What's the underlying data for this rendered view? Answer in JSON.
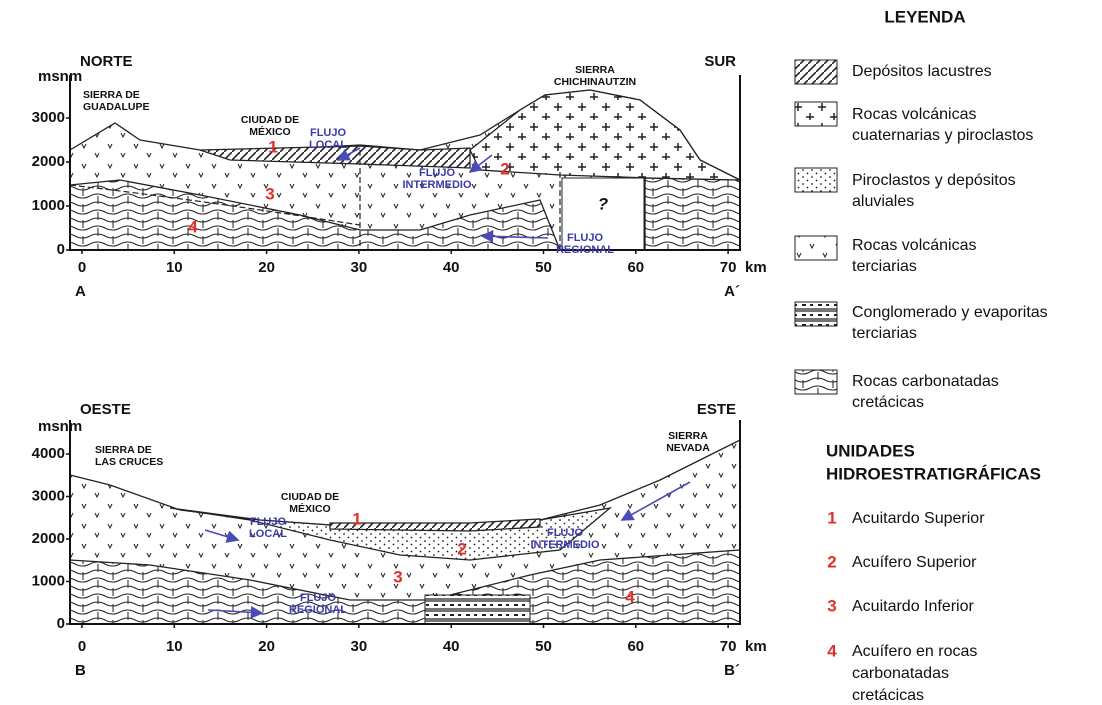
{
  "sections": [
    {
      "left_label": "NORTE",
      "right_label": "SUR",
      "y_unit": "msnm",
      "yticks": [
        0,
        1000,
        2000,
        3000
      ],
      "xticks": [
        0,
        10,
        20,
        30,
        40,
        50,
        60,
        70
      ],
      "x_unit": "km",
      "start": "A",
      "end": "A´",
      "places": [
        {
          "lines": [
            "SIERRA DE",
            "GUADALUPE"
          ]
        },
        {
          "lines": [
            "CIUDAD DE",
            "MÉXICO"
          ]
        },
        {
          "lines": [
            "SIERRA",
            "CHICHINAUTZIN"
          ]
        }
      ],
      "flows": [
        {
          "lines": [
            "FLUJO",
            "LOCAL"
          ]
        },
        {
          "lines": [
            "FLUJO",
            "INTERMEDIO"
          ]
        },
        {
          "lines": [
            "FLUJO",
            "REGIONAL"
          ]
        }
      ],
      "unit_numbers": [
        "1",
        "2",
        "3",
        "4"
      ],
      "unknown": "?"
    },
    {
      "left_label": "OESTE",
      "right_label": "ESTE",
      "y_unit": "msnm",
      "yticks": [
        0,
        1000,
        2000,
        3000,
        4000
      ],
      "xticks": [
        0,
        10,
        20,
        30,
        40,
        50,
        60,
        70
      ],
      "x_unit": "km",
      "start": "B",
      "end": "B´",
      "places": [
        {
          "lines": [
            "SIERRA DE",
            "LAS CRUCES"
          ]
        },
        {
          "lines": [
            "CIUDAD DE",
            "MÉXICO"
          ]
        },
        {
          "lines": [
            "SIERRA",
            "NEVADA"
          ]
        }
      ],
      "flows": [
        {
          "lines": [
            "FLUJO",
            "LOCAL"
          ]
        },
        {
          "lines": [
            "FLUJO",
            "INTERMEDIO"
          ]
        },
        {
          "lines": [
            "FLUJO",
            "REGIONAL"
          ]
        }
      ],
      "unit_numbers": [
        "1",
        "2",
        "3",
        "4"
      ]
    }
  ],
  "legend": {
    "title": "LEYENDA",
    "items": [
      {
        "lines": [
          "Depósitos lacustres"
        ]
      },
      {
        "lines": [
          "Rocas volcánicas",
          "cuaternarias y piroclastos"
        ]
      },
      {
        "lines": [
          "Piroclastos y depósitos",
          "aluviales"
        ]
      },
      {
        "lines": [
          "Rocas volcánicas",
          "terciarias"
        ]
      },
      {
        "lines": [
          "Conglomerado y evaporitas",
          "terciarias"
        ]
      },
      {
        "lines": [
          "Rocas carbonatadas",
          "cretácicas"
        ]
      }
    ],
    "units_title": [
      "UNIDADES",
      "HIDROESTRATIGRÁFICAS"
    ],
    "units": [
      {
        "number": "1",
        "lines": [
          "Acuitardo Superior"
        ]
      },
      {
        "number": "2",
        "lines": [
          "Acuífero Superior"
        ]
      },
      {
        "number": "3",
        "lines": [
          "Acuitardo Inferior"
        ]
      },
      {
        "number": "4",
        "lines": [
          "Acuífero en rocas",
          "carbonatadas",
          "cretácicas"
        ]
      }
    ]
  }
}
